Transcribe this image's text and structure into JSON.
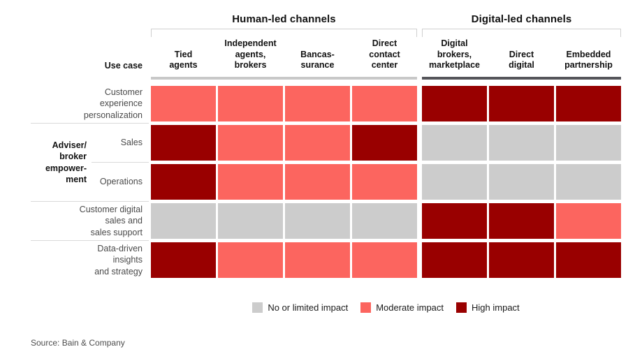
{
  "chart_data": {
    "type": "heatmap",
    "corner_label": "Use case",
    "column_groups": [
      {
        "label": "Human-led channels",
        "underline_color": "#c8c8c8",
        "columns": [
          "Tied\nagents",
          "Independent\nagents,\nbrokers",
          "Bancas-\nsurance",
          "Direct\ncontact\ncenter"
        ]
      },
      {
        "label": "Digital-led channels",
        "underline_color": "#55555a",
        "columns": [
          "Digital\nbrokers,\nmarketplace",
          "Direct\ndigital",
          "Embedded\npartnership"
        ]
      }
    ],
    "row_group": {
      "label": "Adviser/\nbroker\nempower-\nment",
      "covers_rows": [
        "Sales",
        "Operations"
      ]
    },
    "rows": [
      {
        "label": "Customer\nexperience\npersonalization",
        "values": [
          "moderate",
          "moderate",
          "moderate",
          "moderate",
          "high",
          "high",
          "high"
        ]
      },
      {
        "label": "Sales",
        "values": [
          "high",
          "moderate",
          "moderate",
          "high",
          "limited",
          "limited",
          "limited"
        ]
      },
      {
        "label": "Operations",
        "values": [
          "high",
          "moderate",
          "moderate",
          "moderate",
          "limited",
          "limited",
          "limited"
        ]
      },
      {
        "label": "Customer digital\nsales and\nsales support",
        "values": [
          "limited",
          "limited",
          "limited",
          "limited",
          "high",
          "high",
          "moderate"
        ]
      },
      {
        "label": "Data-driven\ninsights\nand strategy",
        "values": [
          "high",
          "moderate",
          "moderate",
          "moderate",
          "high",
          "high",
          "high"
        ]
      }
    ],
    "legend": [
      {
        "label": "No or limited impact",
        "value": "limited",
        "color": "#cccccc"
      },
      {
        "label": "Moderate impact",
        "value": "moderate",
        "color": "#fc655f"
      },
      {
        "label": "High impact",
        "value": "high",
        "color": "#990000"
      }
    ],
    "source": "Source: Bain & Company"
  }
}
